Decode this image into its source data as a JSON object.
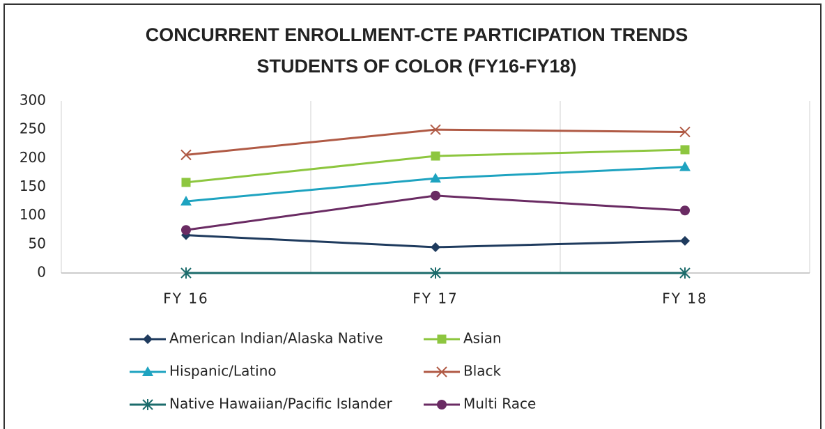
{
  "chart_data": {
    "type": "line",
    "title": [
      "CONCURRENT ENROLLMENT-CTE PARTICIPATION TRENDS",
      "STUDENTS OF COLOR (FY16-FY18)"
    ],
    "categories": [
      "FY 16",
      "FY 17",
      "FY 18"
    ],
    "ylim": [
      0,
      300
    ],
    "yticks": [
      0,
      50,
      100,
      150,
      200,
      250,
      300
    ],
    "grid": "vertical",
    "series": [
      {
        "name": "American Indian/Alaska Native",
        "color": "#1f3b5e",
        "marker": "diamond",
        "values": [
          66,
          45,
          56
        ]
      },
      {
        "name": "Asian",
        "color": "#8dc63f",
        "marker": "square",
        "values": [
          158,
          204,
          215
        ]
      },
      {
        "name": "Hispanic/Latino",
        "color": "#1ea3c0",
        "marker": "triangle",
        "values": [
          125,
          165,
          185
        ]
      },
      {
        "name": "Black",
        "color": "#b05a45",
        "marker": "x",
        "values": [
          206,
          250,
          246
        ]
      },
      {
        "name": "Native Hawaiian/Pacific Islander",
        "color": "#1b6b6b",
        "marker": "asterisk",
        "values": [
          0,
          0,
          0
        ]
      },
      {
        "name": "Multi Race",
        "color": "#6a2b63",
        "marker": "circle",
        "values": [
          75,
          135,
          109
        ]
      }
    ]
  }
}
